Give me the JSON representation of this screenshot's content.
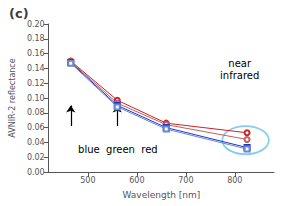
{
  "chart_data": {
    "type": "line",
    "title": "(c)",
    "xlabel": "Wavelength [nm]",
    "ylabel": "AVNIR-2 reflectance",
    "x": [
      465,
      560,
      660,
      825
    ],
    "series": [
      {
        "color": "#cc2222",
        "marker": "circle",
        "values": [
          0.15,
          0.097,
          0.066,
          0.053
        ]
      },
      {
        "color": "#c06060",
        "marker": "circle",
        "values": [
          0.149,
          0.093,
          0.064,
          0.044
        ]
      },
      {
        "color": "#2233cc",
        "marker": "square",
        "values": [
          0.148,
          0.09,
          0.06,
          0.033
        ]
      },
      {
        "color": "#6688cc",
        "marker": "square",
        "values": [
          0.147,
          0.088,
          0.058,
          0.031
        ]
      }
    ],
    "xlim": [
      420,
      880
    ],
    "xticks": [
      500,
      600,
      700,
      800
    ],
    "ylim": [
      0,
      0.2
    ],
    "yticks": [
      {
        "value": 0,
        "label": "0.00"
      },
      0.02,
      0.04,
      0.06,
      0.08,
      {
        "value": 0.1,
        "label": "0.10"
      },
      0.12,
      0.14,
      0.16,
      0.18,
      {
        "value": 0.2,
        "label": "0.20"
      }
    ],
    "grid": false,
    "annotations": [
      {
        "text": "blue  green  red",
        "x": 480,
        "y": 0.022
      },
      {
        "text": "near\ninfrared",
        "x": 810,
        "y": 0.155
      }
    ],
    "arrows": [
      {
        "x": 465,
        "y_tail": 0.062,
        "y_head": 0.09,
        "color": "black"
      },
      {
        "x": 560,
        "y_tail": 0.062,
        "y_head": 0.09,
        "color": "black"
      }
    ],
    "ellipse": {
      "cx": 822,
      "cy": 0.043,
      "width": 95,
      "height": 0.038,
      "color": "#88ccee"
    }
  }
}
